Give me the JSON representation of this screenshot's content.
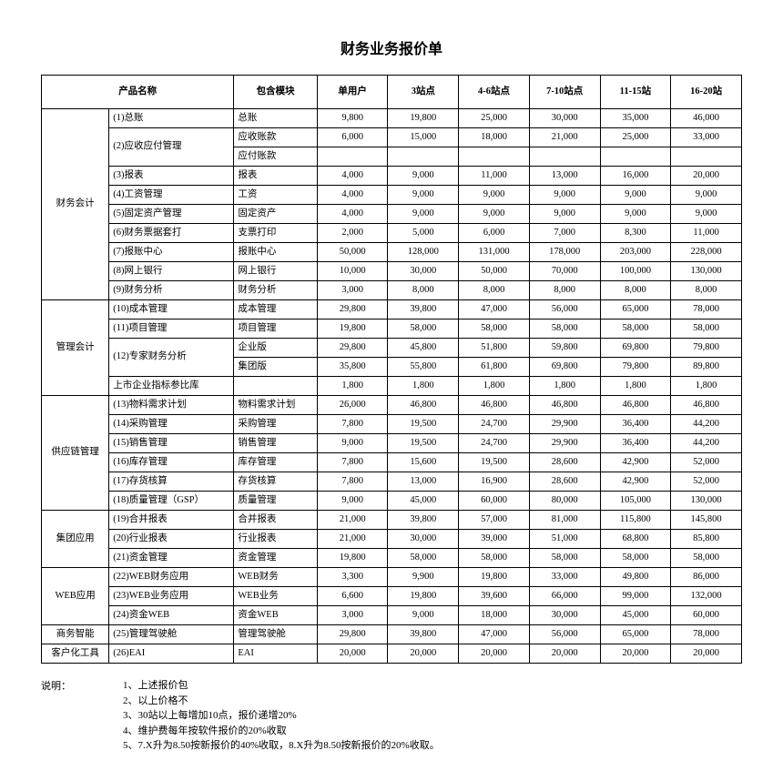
{
  "title": "财务业务报价单",
  "headers": [
    "产品名称",
    "包含模块",
    "单用户",
    "3站点",
    "4-6站点",
    "7-10站点",
    "11-15站",
    "16-20站"
  ],
  "notes_label": "说明：",
  "notes": [
    "1、上述报价包",
    "2、以上价格不",
    "3、30站以上每增加10点，报价递增20%",
    "4、维护费每年按软件报价的20%收取",
    "5、7.X升为8.50按新报价的40%收取，8.X升为8.50按新报价的20%收取。"
  ],
  "sections": [
    {
      "category": "财务会计",
      "rows": [
        {
          "product": "(1)总账",
          "module": "总账",
          "p": [
            "9,800",
            "19,800",
            "25,000",
            "30,000",
            "35,000",
            "46,000"
          ]
        },
        {
          "product": "(2)应收应付管理",
          "module": "应收账款",
          "p": [
            "6,000",
            "15,000",
            "18,000",
            "21,000",
            "25,000",
            "33,000"
          ],
          "product_rowspan": 2
        },
        {
          "product": "",
          "module": "应付账款",
          "p": [
            "",
            "",
            "",
            "",
            "",
            ""
          ]
        },
        {
          "product": "(3)报表",
          "module": "报表",
          "p": [
            "4,000",
            "9,000",
            "11,000",
            "13,000",
            "16,000",
            "20,000"
          ]
        },
        {
          "product": "(4)工资管理",
          "module": "工资",
          "p": [
            "4,000",
            "9,000",
            "9,000",
            "9,000",
            "9,000",
            "9,000"
          ]
        },
        {
          "product": "(5)固定资产管理",
          "module": "固定资产",
          "p": [
            "4,000",
            "9,000",
            "9,000",
            "9,000",
            "9,000",
            "9,000"
          ]
        },
        {
          "product": "(6)财务票据套打",
          "module": "支票打印",
          "p": [
            "2,000",
            "5,000",
            "6,000",
            "7,000",
            "8,300",
            "11,000"
          ]
        },
        {
          "product": "(7)报账中心",
          "module": "报账中心",
          "p": [
            "50,000",
            "128,000",
            "131,000",
            "178,000",
            "203,000",
            "228,000"
          ]
        },
        {
          "product": "(8)网上银行",
          "module": "网上银行",
          "p": [
            "10,000",
            "30,000",
            "50,000",
            "70,000",
            "100,000",
            "130,000"
          ]
        },
        {
          "product": "(9)财务分析",
          "module": "财务分析",
          "p": [
            "3,000",
            "8,000",
            "8,000",
            "8,000",
            "8,000",
            "8,000"
          ]
        }
      ]
    },
    {
      "category": "管理会计",
      "rows": [
        {
          "product": "(10)成本管理",
          "module": "成本管理",
          "p": [
            "29,800",
            "39,800",
            "47,000",
            "56,000",
            "65,000",
            "78,000"
          ]
        },
        {
          "product": "(11)项目管理",
          "module": "项目管理",
          "p": [
            "19,800",
            "58,000",
            "58,000",
            "58,000",
            "58,000",
            "58,000"
          ]
        },
        {
          "product": "(12)专家财务分析",
          "module": "企业版",
          "p": [
            "29,800",
            "45,800",
            "51,800",
            "59,800",
            "69,800",
            "79,800"
          ],
          "product_rowspan": 2
        },
        {
          "product": "",
          "module": "集团版",
          "p": [
            "35,800",
            "55,800",
            "61,800",
            "69,800",
            "79,800",
            "89,800"
          ]
        },
        {
          "product": "上市企业指标参比库",
          "module": "",
          "p": [
            "1,800",
            "1,800",
            "1,800",
            "1,800",
            "1,800",
            "1,800"
          ]
        }
      ]
    },
    {
      "category": "供应链管理",
      "rows": [
        {
          "product": "(13)物料需求计划",
          "module": "物料需求计划",
          "p": [
            "26,000",
            "46,800",
            "46,800",
            "46,800",
            "46,800",
            "46,800"
          ]
        },
        {
          "product": "(14)采购管理",
          "module": "采购管理",
          "p": [
            "7,800",
            "19,500",
            "24,700",
            "29,900",
            "36,400",
            "44,200"
          ]
        },
        {
          "product": "(15)销售管理",
          "module": "销售管理",
          "p": [
            "9,000",
            "19,500",
            "24,700",
            "29,900",
            "36,400",
            "44,200"
          ]
        },
        {
          "product": "(16)库存管理",
          "module": "库存管理",
          "p": [
            "7,800",
            "15,600",
            "19,500",
            "28,600",
            "42,900",
            "52,000"
          ]
        },
        {
          "product": "(17)存货核算",
          "module": "存货核算",
          "p": [
            "7,800",
            "13,000",
            "16,900",
            "28,600",
            "42,900",
            "52,000"
          ]
        },
        {
          "product": "(18)质量管理（GSP）",
          "module": "质量管理",
          "p": [
            "9,000",
            "45,000",
            "60,000",
            "80,000",
            "105,000",
            "130,000"
          ]
        }
      ]
    },
    {
      "category": "集团应用",
      "rows": [
        {
          "product": "(19)合并报表",
          "module": "合并报表",
          "p": [
            "21,000",
            "39,800",
            "57,000",
            "81,000",
            "115,800",
            "145,800"
          ]
        },
        {
          "product": "(20)行业报表",
          "module": "行业报表",
          "p": [
            "21,000",
            "30,000",
            "39,000",
            "51,000",
            "68,800",
            "85,800"
          ]
        },
        {
          "product": "(21)资金管理",
          "module": "资金管理",
          "p": [
            "19,800",
            "58,000",
            "58,000",
            "58,000",
            "58,000",
            "58,000"
          ]
        }
      ]
    },
    {
      "category": "WEB应用",
      "rows": [
        {
          "product": "(22)WEB财务应用",
          "module": "WEB财务",
          "p": [
            "3,300",
            "9,900",
            "19,800",
            "33,000",
            "49,800",
            "86,000"
          ]
        },
        {
          "product": "(23)WEB业务应用",
          "module": "WEB业务",
          "p": [
            "6,600",
            "19,800",
            "39,600",
            "66,000",
            "99,000",
            "132,000"
          ]
        },
        {
          "product": "(24)资金WEB",
          "module": "资金WEB",
          "p": [
            "3,000",
            "9,000",
            "18,000",
            "30,000",
            "45,000",
            "60,000"
          ]
        }
      ]
    },
    {
      "category": "商务智能",
      "rows": [
        {
          "product": "(25)管理驾驶舱",
          "module": "管理驾驶舱",
          "p": [
            "29,800",
            "39,800",
            "47,000",
            "56,000",
            "65,000",
            "78,000"
          ]
        }
      ]
    },
    {
      "category": "客户化工具",
      "rows": [
        {
          "product": "(26)EAI",
          "module": "EAI",
          "p": [
            "20,000",
            "20,000",
            "20,000",
            "20,000",
            "20,000",
            "20,000"
          ]
        }
      ]
    }
  ]
}
